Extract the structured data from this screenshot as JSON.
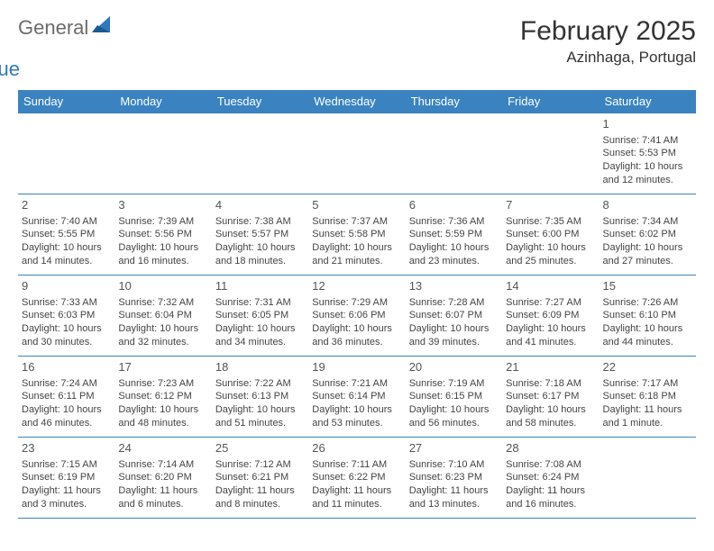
{
  "brand": {
    "part1": "General",
    "part2": "Blue"
  },
  "title": "February 2025",
  "location": "Azinhaga, Portugal",
  "colors": {
    "header_bg": "#3b83c0",
    "header_text": "#ffffff",
    "border": "#3b83c0",
    "brand_gray": "#6b6b6b",
    "brand_blue": "#2e79bd",
    "text": "#444444"
  },
  "day_headers": [
    "Sunday",
    "Monday",
    "Tuesday",
    "Wednesday",
    "Thursday",
    "Friday",
    "Saturday"
  ],
  "weeks": [
    [
      null,
      null,
      null,
      null,
      null,
      null,
      {
        "n": "1",
        "sunrise": "7:41 AM",
        "sunset": "5:53 PM",
        "daylight": "10 hours and 12 minutes."
      }
    ],
    [
      {
        "n": "2",
        "sunrise": "7:40 AM",
        "sunset": "5:55 PM",
        "daylight": "10 hours and 14 minutes."
      },
      {
        "n": "3",
        "sunrise": "7:39 AM",
        "sunset": "5:56 PM",
        "daylight": "10 hours and 16 minutes."
      },
      {
        "n": "4",
        "sunrise": "7:38 AM",
        "sunset": "5:57 PM",
        "daylight": "10 hours and 18 minutes."
      },
      {
        "n": "5",
        "sunrise": "7:37 AM",
        "sunset": "5:58 PM",
        "daylight": "10 hours and 21 minutes."
      },
      {
        "n": "6",
        "sunrise": "7:36 AM",
        "sunset": "5:59 PM",
        "daylight": "10 hours and 23 minutes."
      },
      {
        "n": "7",
        "sunrise": "7:35 AM",
        "sunset": "6:00 PM",
        "daylight": "10 hours and 25 minutes."
      },
      {
        "n": "8",
        "sunrise": "7:34 AM",
        "sunset": "6:02 PM",
        "daylight": "10 hours and 27 minutes."
      }
    ],
    [
      {
        "n": "9",
        "sunrise": "7:33 AM",
        "sunset": "6:03 PM",
        "daylight": "10 hours and 30 minutes."
      },
      {
        "n": "10",
        "sunrise": "7:32 AM",
        "sunset": "6:04 PM",
        "daylight": "10 hours and 32 minutes."
      },
      {
        "n": "11",
        "sunrise": "7:31 AM",
        "sunset": "6:05 PM",
        "daylight": "10 hours and 34 minutes."
      },
      {
        "n": "12",
        "sunrise": "7:29 AM",
        "sunset": "6:06 PM",
        "daylight": "10 hours and 36 minutes."
      },
      {
        "n": "13",
        "sunrise": "7:28 AM",
        "sunset": "6:07 PM",
        "daylight": "10 hours and 39 minutes."
      },
      {
        "n": "14",
        "sunrise": "7:27 AM",
        "sunset": "6:09 PM",
        "daylight": "10 hours and 41 minutes."
      },
      {
        "n": "15",
        "sunrise": "7:26 AM",
        "sunset": "6:10 PM",
        "daylight": "10 hours and 44 minutes."
      }
    ],
    [
      {
        "n": "16",
        "sunrise": "7:24 AM",
        "sunset": "6:11 PM",
        "daylight": "10 hours and 46 minutes."
      },
      {
        "n": "17",
        "sunrise": "7:23 AM",
        "sunset": "6:12 PM",
        "daylight": "10 hours and 48 minutes."
      },
      {
        "n": "18",
        "sunrise": "7:22 AM",
        "sunset": "6:13 PM",
        "daylight": "10 hours and 51 minutes."
      },
      {
        "n": "19",
        "sunrise": "7:21 AM",
        "sunset": "6:14 PM",
        "daylight": "10 hours and 53 minutes."
      },
      {
        "n": "20",
        "sunrise": "7:19 AM",
        "sunset": "6:15 PM",
        "daylight": "10 hours and 56 minutes."
      },
      {
        "n": "21",
        "sunrise": "7:18 AM",
        "sunset": "6:17 PM",
        "daylight": "10 hours and 58 minutes."
      },
      {
        "n": "22",
        "sunrise": "7:17 AM",
        "sunset": "6:18 PM",
        "daylight": "11 hours and 1 minute."
      }
    ],
    [
      {
        "n": "23",
        "sunrise": "7:15 AM",
        "sunset": "6:19 PM",
        "daylight": "11 hours and 3 minutes."
      },
      {
        "n": "24",
        "sunrise": "7:14 AM",
        "sunset": "6:20 PM",
        "daylight": "11 hours and 6 minutes."
      },
      {
        "n": "25",
        "sunrise": "7:12 AM",
        "sunset": "6:21 PM",
        "daylight": "11 hours and 8 minutes."
      },
      {
        "n": "26",
        "sunrise": "7:11 AM",
        "sunset": "6:22 PM",
        "daylight": "11 hours and 11 minutes."
      },
      {
        "n": "27",
        "sunrise": "7:10 AM",
        "sunset": "6:23 PM",
        "daylight": "11 hours and 13 minutes."
      },
      {
        "n": "28",
        "sunrise": "7:08 AM",
        "sunset": "6:24 PM",
        "daylight": "11 hours and 16 minutes."
      },
      null
    ]
  ],
  "labels": {
    "sunrise": "Sunrise:",
    "sunset": "Sunset:",
    "daylight": "Daylight:"
  }
}
